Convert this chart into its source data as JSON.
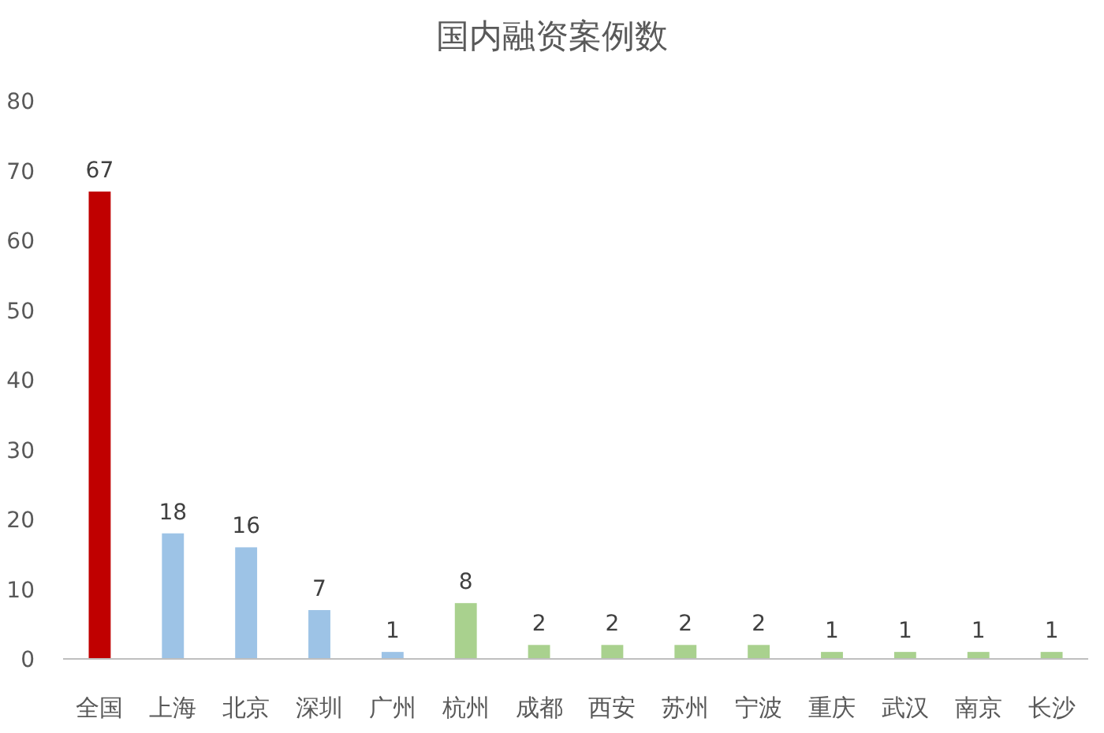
{
  "chart_data": {
    "type": "bar",
    "title": "国内融资案例数",
    "categories": [
      "全国",
      "上海",
      "北京",
      "深圳",
      "广州",
      "杭州",
      "成都",
      "西安",
      "苏州",
      "宁波",
      "重庆",
      "武汉",
      "南京",
      "长沙"
    ],
    "values": [
      67,
      18,
      16,
      7,
      1,
      8,
      2,
      2,
      2,
      2,
      1,
      1,
      1,
      1
    ],
    "colors": [
      "#c00000",
      "#9dc3e6",
      "#9dc3e6",
      "#9dc3e6",
      "#9dc3e6",
      "#a9d18e",
      "#a9d18e",
      "#a9d18e",
      "#a9d18e",
      "#a9d18e",
      "#a9d18e",
      "#a9d18e",
      "#a9d18e",
      "#a9d18e"
    ],
    "ylim": [
      0,
      80
    ],
    "yticks": [
      0,
      10,
      20,
      30,
      40,
      50,
      60,
      70,
      80
    ],
    "data_labels": true,
    "grid": false
  }
}
